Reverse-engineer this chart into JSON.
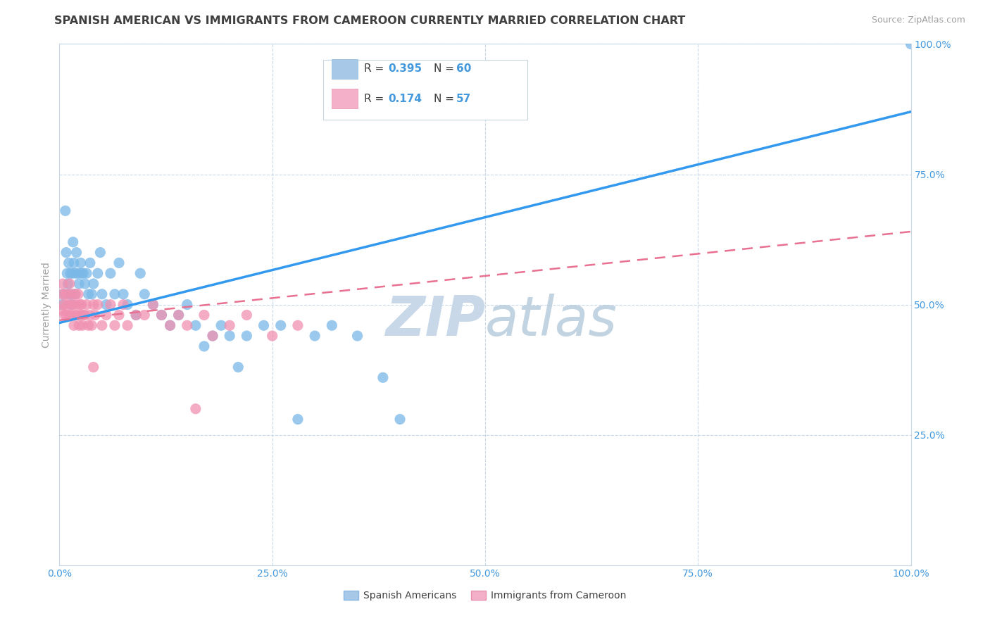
{
  "title": "SPANISH AMERICAN VS IMMIGRANTS FROM CAMEROON CURRENTLY MARRIED CORRELATION CHART",
  "source": "Source: ZipAtlas.com",
  "ylabel": "Currently Married",
  "watermark": "ZIPatlas",
  "series": [
    {
      "label": "Spanish Americans",
      "R": 0.395,
      "N": 60,
      "color": "#a8c8e8",
      "line_color": "#3399ee",
      "scatter_color": "#7ab8e8",
      "points_x": [
        0.003,
        0.005,
        0.007,
        0.008,
        0.009,
        0.01,
        0.011,
        0.012,
        0.013,
        0.014,
        0.015,
        0.016,
        0.017,
        0.018,
        0.019,
        0.02,
        0.022,
        0.023,
        0.025,
        0.026,
        0.028,
        0.03,
        0.032,
        0.034,
        0.036,
        0.038,
        0.04,
        0.045,
        0.048,
        0.05,
        0.055,
        0.06,
        0.065,
        0.07,
        0.075,
        0.08,
        0.09,
        0.095,
        0.1,
        0.11,
        0.12,
        0.13,
        0.14,
        0.15,
        0.16,
        0.17,
        0.18,
        0.19,
        0.2,
        0.21,
        0.22,
        0.24,
        0.26,
        0.28,
        0.3,
        0.32,
        0.35,
        0.38,
        0.4,
        1.0
      ],
      "points_y": [
        0.5,
        0.52,
        0.68,
        0.6,
        0.56,
        0.54,
        0.58,
        0.52,
        0.56,
        0.5,
        0.56,
        0.62,
        0.58,
        0.52,
        0.56,
        0.6,
        0.56,
        0.54,
        0.58,
        0.56,
        0.56,
        0.54,
        0.56,
        0.52,
        0.58,
        0.52,
        0.54,
        0.56,
        0.6,
        0.52,
        0.5,
        0.56,
        0.52,
        0.58,
        0.52,
        0.5,
        0.48,
        0.56,
        0.52,
        0.5,
        0.48,
        0.46,
        0.48,
        0.5,
        0.46,
        0.42,
        0.44,
        0.46,
        0.44,
        0.38,
        0.44,
        0.46,
        0.46,
        0.28,
        0.44,
        0.46,
        0.44,
        0.36,
        0.28,
        1.0
      ],
      "trend_x": [
        0.0,
        1.0
      ],
      "trend_y": [
        0.465,
        0.87
      ]
    },
    {
      "label": "Immigrants from Cameroon",
      "R": 0.174,
      "N": 57,
      "color": "#f4b0c8",
      "line_color": "#e87090",
      "scatter_color": "#f090b0",
      "points_x": [
        0.002,
        0.003,
        0.004,
        0.005,
        0.006,
        0.007,
        0.008,
        0.009,
        0.01,
        0.011,
        0.012,
        0.013,
        0.014,
        0.015,
        0.016,
        0.017,
        0.018,
        0.019,
        0.02,
        0.021,
        0.022,
        0.023,
        0.024,
        0.025,
        0.026,
        0.027,
        0.028,
        0.03,
        0.032,
        0.034,
        0.036,
        0.038,
        0.04,
        0.042,
        0.045,
        0.05,
        0.055,
        0.06,
        0.065,
        0.07,
        0.075,
        0.08,
        0.09,
        0.1,
        0.11,
        0.12,
        0.13,
        0.14,
        0.15,
        0.16,
        0.17,
        0.18,
        0.2,
        0.22,
        0.25,
        0.28,
        0.04
      ],
      "points_y": [
        0.49,
        0.52,
        0.54,
        0.5,
        0.48,
        0.52,
        0.48,
        0.5,
        0.52,
        0.48,
        0.54,
        0.5,
        0.48,
        0.52,
        0.5,
        0.46,
        0.48,
        0.52,
        0.5,
        0.48,
        0.52,
        0.46,
        0.5,
        0.48,
        0.5,
        0.46,
        0.48,
        0.48,
        0.5,
        0.46,
        0.48,
        0.46,
        0.5,
        0.48,
        0.5,
        0.46,
        0.48,
        0.5,
        0.46,
        0.48,
        0.5,
        0.46,
        0.48,
        0.48,
        0.5,
        0.48,
        0.46,
        0.48,
        0.46,
        0.3,
        0.48,
        0.44,
        0.46,
        0.48,
        0.44,
        0.46,
        0.38
      ],
      "trend_x": [
        0.0,
        1.0
      ],
      "trend_y": [
        0.47,
        0.64
      ]
    }
  ],
  "xlim": [
    0.0,
    1.0
  ],
  "ylim": [
    0.0,
    1.0
  ],
  "xticks": [
    0.0,
    0.25,
    0.5,
    0.75,
    1.0
  ],
  "xtick_labels": [
    "0.0%",
    "25.0%",
    "50.0%",
    "75.0%",
    "100.0%"
  ],
  "yticks": [
    0.25,
    0.5,
    0.75,
    1.0
  ],
  "ytick_labels": [
    "25.0%",
    "50.0%",
    "75.0%",
    "100.0%"
  ],
  "title_color": "#404040",
  "axis_color": "#a0a0a0",
  "tick_color": "#4499dd",
  "grid_color": "#c8d8e8",
  "watermark_color": "#d8e4ee",
  "title_fontsize": 11.5,
  "source_fontsize": 9,
  "axis_label_fontsize": 10,
  "tick_fontsize": 10
}
